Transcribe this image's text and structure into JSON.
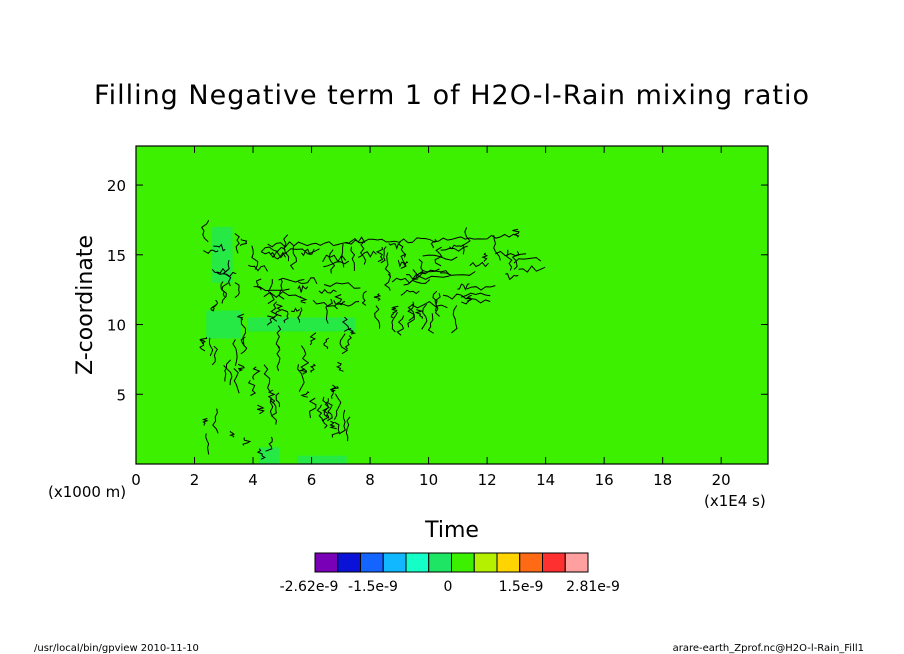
{
  "chart_data": {
    "type": "heatmap",
    "title": "Filling Negative term 1 of H2O-l-Rain mixing ratio",
    "xlabel": "Time",
    "ylabel": "Z-coordinate",
    "x_unit": "(x1E4 s)",
    "y_unit": "(x1000 m)",
    "xlim": [
      0,
      21.6
    ],
    "ylim": [
      0,
      22.8
    ],
    "x_ticks": [
      0,
      2,
      4,
      6,
      8,
      10,
      12,
      14,
      16,
      18,
      20
    ],
    "y_ticks": [
      5,
      10,
      15,
      20
    ],
    "x_tick_labels": [
      "0",
      "2",
      "4",
      "6",
      "8",
      "10",
      "12",
      "14",
      "16",
      "18",
      "20"
    ],
    "y_tick_labels": [
      "5",
      "10",
      "15",
      "20"
    ],
    "background_value": 0,
    "active_region": {
      "x": [
        2.3,
        13.2
      ],
      "y": [
        0,
        16.5
      ]
    },
    "colorbar": {
      "colors": [
        "#7a00b8",
        "#0a12d8",
        "#1464ff",
        "#11b8ff",
        "#14ffc8",
        "#1ee664",
        "#3cf000",
        "#b4f000",
        "#ffd400",
        "#ff6a14",
        "#ff3030",
        "#ffa0a0"
      ],
      "tick_labels": [
        "-2.62e-9",
        "-1.5e-9",
        "0",
        "1.5e-9",
        "2.81e-9"
      ],
      "tick_values": [
        -2.62e-09,
        -1.5e-09,
        0,
        1.5e-09,
        2.81e-09
      ]
    },
    "grid": false
  },
  "footer": {
    "left": "/usr/local/bin/gpview   2010-11-10",
    "right": "arare-earth_Zprof.nc@H2O-l-Rain_Fill1"
  }
}
